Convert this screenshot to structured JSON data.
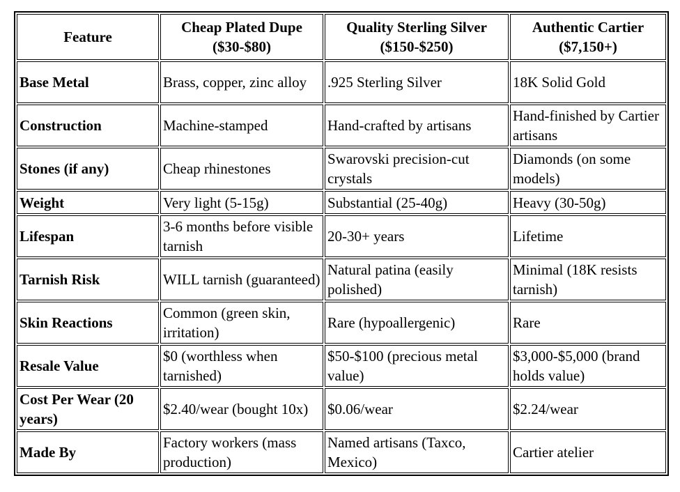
{
  "table": {
    "header": [
      "Feature",
      "Cheap Plated Dupe ($30-$80)",
      "Quality Sterling Silver ($150-$250)",
      "Authentic Cartier ($7,150+)"
    ],
    "rows": [
      [
        "Base Metal",
        "Brass, copper, zinc alloy",
        ".925 Sterling Silver",
        "18K Solid Gold"
      ],
      [
        "Construction",
        "Machine-stamped",
        "Hand-crafted by artisans",
        "Hand-finished by Cartier artisans"
      ],
      [
        "Stones (if any)",
        "Cheap rhinestones",
        "Swarovski precision-cut crystals",
        "Diamonds (on some models)"
      ],
      [
        "Weight",
        "Very light (5-15g)",
        "Substantial (25-40g)",
        "Heavy (30-50g)"
      ],
      [
        "Lifespan",
        "3-6 months before visible tarnish",
        "20-30+ years",
        "Lifetime"
      ],
      [
        "Tarnish Risk",
        "WILL tarnish (guaranteed)",
        "Natural patina (easily polished)",
        "Minimal (18K resists tarnish)"
      ],
      [
        "Skin Reactions",
        "Common (green skin, irritation)",
        "Rare (hypoallergenic)",
        "Rare"
      ],
      [
        "Resale Value",
        "$0 (worthless when tarnished)",
        "$50-$100 (precious metal value)",
        "$3,000-$5,000 (brand holds value)"
      ],
      [
        "Cost Per Wear (20 years)",
        "$2.40/wear (bought 10x)",
        "$0.06/wear",
        "$2.24/wear"
      ],
      [
        "Made By",
        "Factory workers (mass production)",
        "Named artisans (Taxco, Mexico)",
        "Cartier atelier"
      ]
    ]
  }
}
